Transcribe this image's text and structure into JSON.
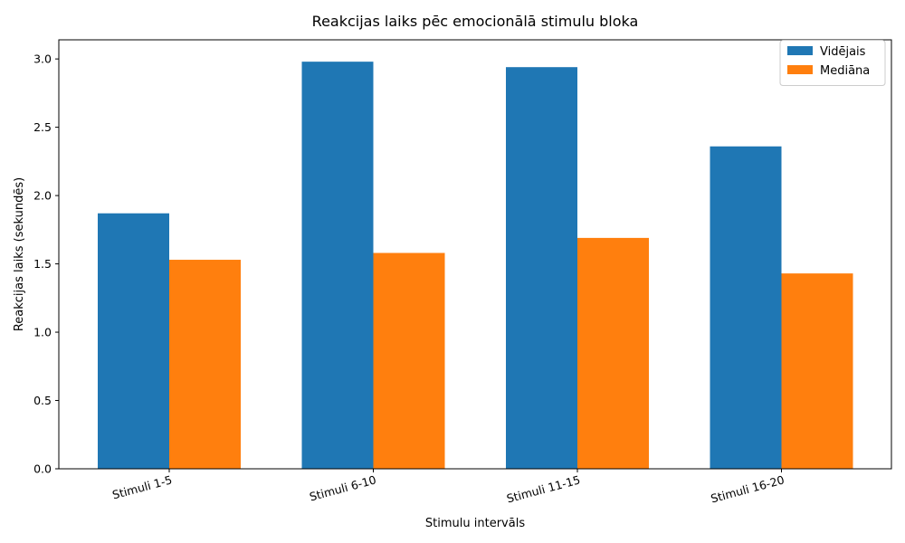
{
  "chart_data": {
    "type": "bar",
    "title": "Reakcijas laiks pēc emocionālā stimulu bloka",
    "xlabel": "Stimulu intervāls",
    "ylabel": "Reakcijas laiks (sekundēs)",
    "categories": [
      "Stimuli 1-5",
      "Stimuli 6-10",
      "Stimuli 11-15",
      "Stimuli 16-20"
    ],
    "series": [
      {
        "name": "Vidējais",
        "color": "#1f77b4",
        "values": [
          1.87,
          2.98,
          2.94,
          2.36
        ]
      },
      {
        "name": "Mediāna",
        "color": "#ff7f0e",
        "values": [
          1.53,
          1.58,
          1.69,
          1.43
        ]
      }
    ],
    "ylim": [
      0,
      3.14
    ],
    "yticks": [
      "0.0",
      "0.5",
      "1.0",
      "1.5",
      "2.0",
      "2.5",
      "3.0"
    ],
    "legend_position": "top-right",
    "grid": false
  }
}
